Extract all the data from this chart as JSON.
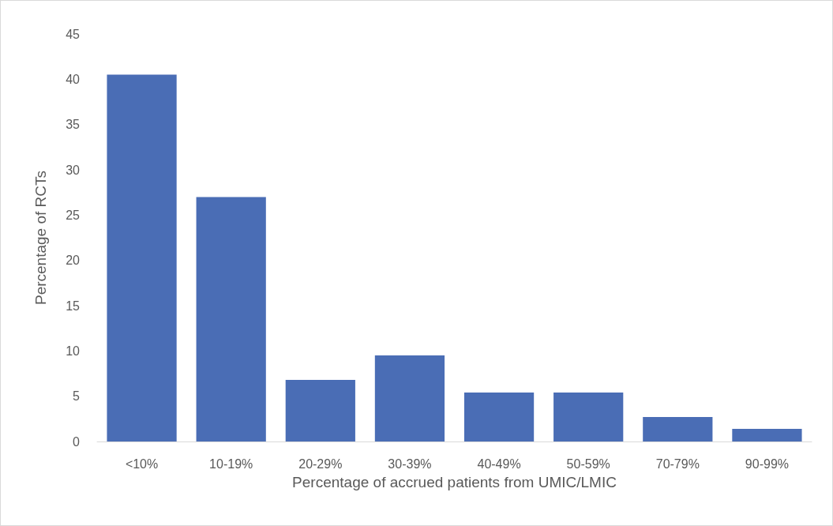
{
  "chart_data": {
    "type": "bar",
    "xlabel": "Percentage of accrued patients from UMIC/LMIC",
    "ylabel": "Percentage of RCTs",
    "categories": [
      "<10%",
      "10-19%",
      "20-29%",
      "30-39%",
      "40-49%",
      "50-59%",
      "70-79%",
      "90-99%"
    ],
    "values": [
      40.5,
      27.0,
      6.8,
      9.5,
      5.4,
      5.4,
      2.7,
      1.4
    ],
    "color": "#4a6db5",
    "ylim": [
      0,
      45
    ],
    "yticks": [
      0,
      5,
      10,
      15,
      20,
      25,
      30,
      35,
      40,
      45
    ],
    "grid": false
  }
}
